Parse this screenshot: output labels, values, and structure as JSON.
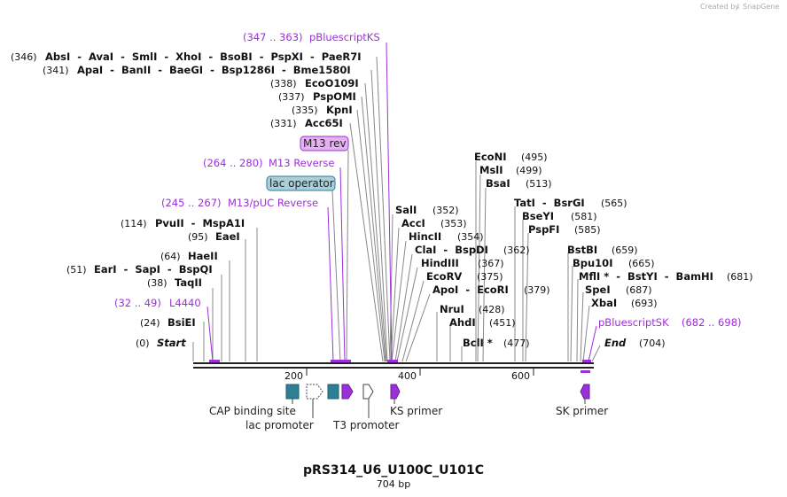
{
  "plasmid": {
    "name": "pRS314_U6_U100C_U101C",
    "length_label": "704 bp",
    "length": 704
  },
  "credit": {
    "created_by": "Created by",
    "brand": "SnapGene"
  },
  "ruler": {
    "ticks": [
      {
        "value": 200,
        "label": "200"
      },
      {
        "value": 400,
        "label": "400"
      },
      {
        "value": 600,
        "label": "600"
      }
    ]
  },
  "sites": {
    "row_346": {
      "pos": "(346)",
      "enzymes": "AbsI  -  AvaI  -  SmlI  -  XhoI  -  BsoBI  -  PspXI  -  PaeR7I"
    },
    "row_341": {
      "pos": "(341)",
      "enzymes": "ApaI  -  BanII  -  BaeGI  -  Bsp1286I  -  Bme1580I"
    },
    "row_338": {
      "pos": "(338)",
      "enzymes": "EcoO109I"
    },
    "row_337": {
      "pos": "(337)",
      "enzymes": "PspOMI"
    },
    "row_335": {
      "pos": "(335)",
      "enzymes": "KpnI"
    },
    "row_331": {
      "pos": "(331)",
      "enzymes": "Acc65I"
    },
    "row_114": {
      "pos": "(114)",
      "enzymes": "PvuII  -  MspA1I"
    },
    "row_95": {
      "pos": "(95)",
      "enzymes": "EaeI"
    },
    "row_64": {
      "pos": "(64)",
      "enzymes": "HaeII"
    },
    "row_51": {
      "pos": "(51)",
      "enzymes": "EarI  -  SapI  -  BspQI"
    },
    "row_38": {
      "pos": "(38)",
      "enzymes": "TaqII"
    },
    "row_24": {
      "pos": "(24)",
      "enzymes": "BsiEI"
    },
    "row_0": {
      "pos": "(0)",
      "enzymes": "Start"
    },
    "sali": {
      "name": "SalI",
      "pos": "(352)"
    },
    "acci": {
      "name": "AccI",
      "pos": "(353)"
    },
    "hincii": {
      "name": "HincII",
      "pos": "(354)"
    },
    "clai": {
      "name": "ClaI  -  BspDI",
      "pos": "(362)"
    },
    "hindiii": {
      "name": "HindIII",
      "pos": "(367)"
    },
    "ecorv": {
      "name": "EcoRV",
      "pos": "(375)"
    },
    "apoi": {
      "name": "ApoI  -  EcoRI",
      "pos": "(379)"
    },
    "nrui": {
      "name": "NruI",
      "pos": "(428)"
    },
    "ahdi": {
      "name": "AhdI",
      "pos": "(451)"
    },
    "bcli": {
      "name": "BclI *",
      "pos": "(477)"
    },
    "econi": {
      "name": "EcoNI",
      "pos": "(495)"
    },
    "msli": {
      "name": "MslI",
      "pos": "(499)"
    },
    "bsai": {
      "name": "BsaI",
      "pos": "(513)"
    },
    "tati": {
      "name": "TatI  -  BsrGI",
      "pos": "(565)"
    },
    "bseyi": {
      "name": "BseYI",
      "pos": "(581)"
    },
    "pspfi": {
      "name": "PspFI",
      "pos": "(585)"
    },
    "bstbi": {
      "name": "BstBI",
      "pos": "(659)"
    },
    "bpu10i": {
      "name": "Bpu10I",
      "pos": "(665)"
    },
    "mfli": {
      "name": "MflI *  -  BstYI  -  BamHI",
      "pos": "(681)"
    },
    "spei": {
      "name": "SpeI",
      "pos": "(687)"
    },
    "xbai": {
      "name": "XbaI",
      "pos": "(693)"
    },
    "end": {
      "name": "End",
      "pos": "(704)"
    }
  },
  "primers": {
    "pbks": {
      "range": "(347 .. 363)",
      "name": "pBluescriptKS"
    },
    "m13rev_range": {
      "range": "(264 .. 280)",
      "name": "M13 Reverse"
    },
    "m13puc": {
      "range": "(245 .. 267)",
      "name": "M13/pUC Reverse"
    },
    "l4440": {
      "range": "(32 .. 49)",
      "name": "L4440"
    },
    "pbsk": {
      "name": "pBluescriptSK",
      "range": "(682 .. 698)"
    }
  },
  "boxed_features": {
    "m13rev": "M13 rev",
    "lac_operator": "lac operator"
  },
  "features": {
    "cap": "CAP binding site",
    "lac_promoter": "lac promoter",
    "t3_promoter": "T3 promoter",
    "ks_primer": "KS primer",
    "sk_primer": "SK primer"
  },
  "colors": {
    "primer": "#9b30d9",
    "cap_site": "#2e7f95",
    "lac_operator_box": "#a9cfd9",
    "m13rev_box": "#e2b3ef",
    "arrow_purple": "#9b30d9"
  }
}
